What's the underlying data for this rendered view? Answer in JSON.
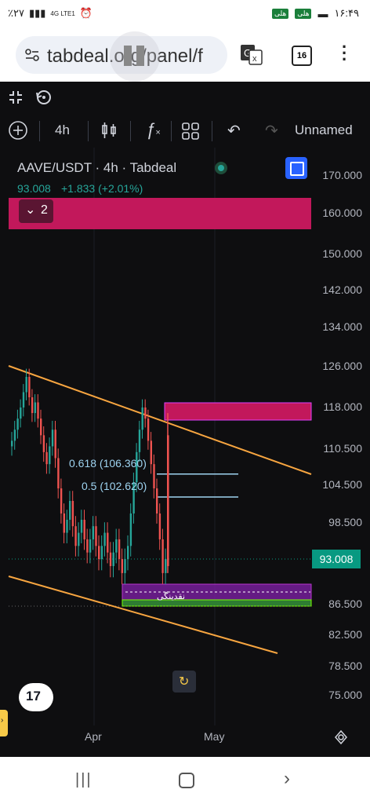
{
  "status": {
    "left_text": "٪۲۷",
    "network": "4G LTE1",
    "time": "۱۶:۴۹",
    "badge1": "هلی",
    "badge2": "هلی"
  },
  "browser": {
    "url": "tabdeal.org/panel/f",
    "tab_count": "16"
  },
  "toolbar": {
    "interval": "4h",
    "layout_name": "Unnamed"
  },
  "chart_header": {
    "symbol": "AAVE/USDT · 4h · Tabdeal",
    "price": "93.008",
    "change": "+1.833 (+2.01%)",
    "collapse_count": "2"
  },
  "annotations": {
    "fib_618": "0.618 (106.360)",
    "fib_05": "0.5 (102.620)",
    "liquidity_label": "نقدینگی"
  },
  "colors": {
    "bg": "#0e0e10",
    "up": "#26a69a",
    "down": "#ef5350",
    "trendline": "#f7a540",
    "zone": "#c2185b",
    "price_tag": "#089981"
  },
  "chart_data": {
    "type": "candlestick",
    "symbol": "AAVE/USDT",
    "interval": "4h",
    "current_price": 93.008,
    "y_ticks": [
      170.0,
      160.0,
      150.0,
      142.0,
      134.0,
      126.0,
      118.0,
      110.5,
      104.5,
      98.5,
      93.008,
      86.5,
      82.5,
      78.5,
      75.0
    ],
    "y_tick_labels": [
      "170.000",
      "160.000",
      "150.000",
      "142.000",
      "134.000",
      "126.000",
      "118.000",
      "110.500",
      "104.500",
      "98.500",
      "93.008",
      "86.500",
      "82.500",
      "78.500",
      "75.000"
    ],
    "x_labels": [
      "Apr",
      "May"
    ],
    "levels": [
      {
        "name": "0.618",
        "price": 106.36
      },
      {
        "name": "0.5",
        "price": 102.62
      }
    ],
    "closes_approx": [
      112,
      114,
      116,
      118,
      121,
      124,
      120,
      117,
      119,
      116,
      113,
      110,
      108,
      111,
      114,
      109,
      104,
      100,
      97,
      99,
      102,
      98,
      95,
      97,
      99,
      96,
      94,
      96,
      98,
      95,
      93,
      95,
      97,
      94,
      92,
      94,
      96,
      93,
      91,
      93,
      95,
      100,
      105,
      110,
      114,
      118,
      116,
      112,
      108,
      104,
      100,
      96,
      91,
      93
    ]
  }
}
